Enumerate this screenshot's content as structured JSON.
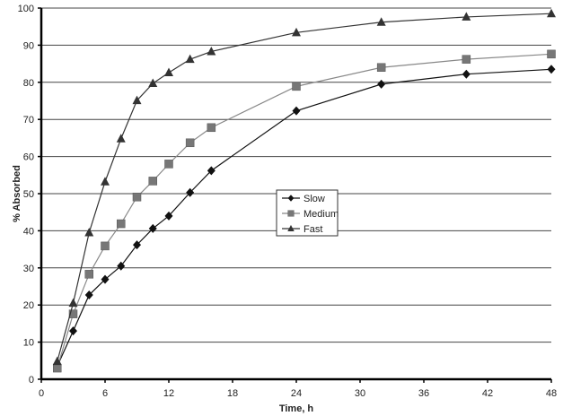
{
  "chart_data": {
    "type": "line",
    "title": "",
    "xlabel": "Time, h",
    "ylabel": "% Absorbed",
    "xlim": [
      0,
      48
    ],
    "ylim": [
      0,
      100
    ],
    "xticks": [
      0,
      6,
      12,
      18,
      24,
      30,
      36,
      42,
      48
    ],
    "yticks": [
      0,
      10,
      20,
      30,
      40,
      50,
      60,
      70,
      80,
      90,
      100
    ],
    "grid": "horizontal",
    "legend_position": "center",
    "x": [
      1.5,
      3,
      4.5,
      6,
      7.5,
      9,
      10.5,
      12,
      14,
      16,
      24,
      32,
      40,
      48
    ],
    "series": [
      {
        "name": "Slow",
        "marker": "diamond",
        "color": "#111111",
        "values": [
          3.5,
          13,
          22.7,
          26.9,
          30.5,
          36.2,
          40.6,
          44,
          50.3,
          56.2,
          72.3,
          79.5,
          82.2,
          83.5
        ]
      },
      {
        "name": "Medium",
        "marker": "square",
        "color": "#777777",
        "values": [
          3,
          17.6,
          28.3,
          35.9,
          41.9,
          49.1,
          53.4,
          58,
          63.7,
          67.8,
          78.9,
          84,
          86.2,
          87.6
        ]
      },
      {
        "name": "Fast",
        "marker": "triangle",
        "color": "#333333",
        "values": [
          4.8,
          20.5,
          39.5,
          53.2,
          64.8,
          75.1,
          79.7,
          82.6,
          86.2,
          88.3,
          93.4,
          96.2,
          97.6,
          98.5
        ]
      }
    ]
  }
}
